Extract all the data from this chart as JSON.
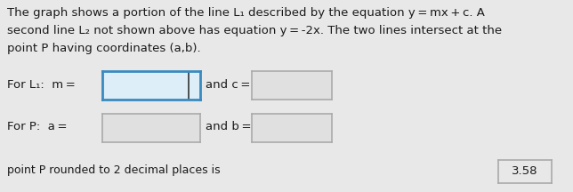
{
  "background_color": "#e8e8e8",
  "text_color": "#1a1a1a",
  "para_line1": "The graph shows a portion of the line L₁ described by the equation y = mx + c. A",
  "para_line2": "second line L₂ not shown above has equation y = -2x. The two lines intersect at the",
  "para_line3": "point P having coordinates (a,b).",
  "label_l1": "For L₁:  m =",
  "label_and_c": "and c =",
  "label_p": "For P:  a =",
  "label_and_b": "and b =",
  "bottom_text": "point P rounded to 2 decimal places is",
  "bottom_value": "3.58",
  "box_blue_edge": "#3a8abf",
  "box_blue_face": "#ddeef8",
  "box_grey_edge": "#aaaaaa",
  "box_grey_face": "#e0e0e0",
  "box_val_edge": "#aaaaaa",
  "box_val_face": "#e8e8e8",
  "font_size_para": 9.5,
  "font_size_label": 9.5,
  "font_size_val": 9.5
}
